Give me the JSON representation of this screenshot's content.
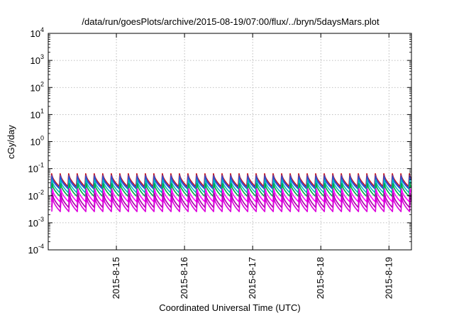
{
  "chart_data": {
    "type": "line",
    "title": "/data/run/goesPlots/archive/2015-08-19/07:00/flux/../bryn/5daysMars.plot",
    "xlabel": "Coordinated Universal Time (UTC)",
    "ylabel": "cGy/day",
    "yscale": "log",
    "ylim": [
      0.0001,
      10000
    ],
    "xlim": [
      14.0,
      19.33
    ],
    "grid": true,
    "y_ticks": [
      {
        "base": "10",
        "exp": "4",
        "value": 10000
      },
      {
        "base": "10",
        "exp": "3",
        "value": 1000
      },
      {
        "base": "10",
        "exp": "2",
        "value": 100
      },
      {
        "base": "10",
        "exp": "1",
        "value": 10
      },
      {
        "base": "10",
        "exp": "0",
        "value": 1
      },
      {
        "base": "10",
        "exp": "-1",
        "value": 0.1
      },
      {
        "base": "10",
        "exp": "-2",
        "value": 0.01
      },
      {
        "base": "10",
        "exp": "-3",
        "value": 0.001
      },
      {
        "base": "10",
        "exp": "-4",
        "value": 0.0001
      }
    ],
    "x_ticks": [
      {
        "label": "2015-8-15",
        "value": 15
      },
      {
        "label": "2015-8-16",
        "value": 16
      },
      {
        "label": "2015-8-17",
        "value": 17
      },
      {
        "label": "2015-8-18",
        "value": 18
      },
      {
        "label": "2015-8-19",
        "value": 19
      }
    ],
    "pattern": {
      "period_days": 0.125,
      "peak_day_range": [
        14.05,
        19.33
      ],
      "description_values": "sawtooth: rises sharply at each period then decays"
    },
    "series": [
      {
        "color": "#cc0000",
        "peak": 0.065,
        "trough": 0.022
      },
      {
        "color": "#7a3d8f",
        "peak": 0.058,
        "trough": 0.02
      },
      {
        "color": "#2255dd",
        "peak": 0.05,
        "trough": 0.018
      },
      {
        "color": "#00c0c0",
        "peak": 0.038,
        "trough": 0.013
      },
      {
        "color": "#00aa44",
        "peak": 0.028,
        "trough": 0.0095
      },
      {
        "color": "#ff00ff",
        "peak": 0.018,
        "trough": 0.006
      },
      {
        "color": "#aa00aa",
        "peak": 0.012,
        "trough": 0.0037
      },
      {
        "color": "#dd00dd",
        "peak": 0.0085,
        "trough": 0.0026
      }
    ]
  }
}
